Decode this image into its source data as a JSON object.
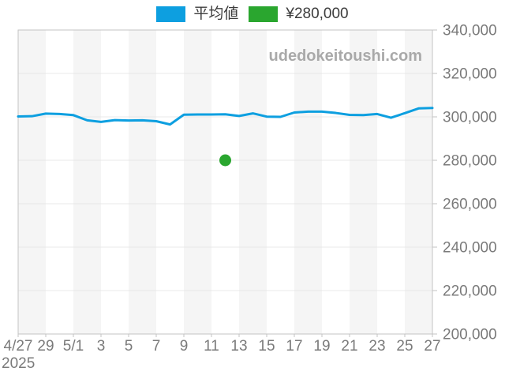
{
  "watermark": "udedokeitoushi.com",
  "legend": {
    "average": {
      "label": "平均値",
      "color": "#0d9fe0"
    },
    "marker": {
      "label": "¥280,000",
      "color": "#2aa62f"
    }
  },
  "colors": {
    "line_blue": "#0d9fe0",
    "marker_green": "#2aa62f",
    "stripe": "#f5f5f5",
    "grid": "#e8e8e8",
    "border": "#c3c3c3",
    "axis_text": "#7a7a7a",
    "watermark_text": "#a9a9a9"
  },
  "chart_data": {
    "type": "line",
    "title": "",
    "xlabel": "",
    "ylabel": "",
    "legend_position": "top-center",
    "grid": true,
    "ylim": [
      200000,
      340000
    ],
    "y_tick_step": 20000,
    "y_tick_labels": [
      "340,000",
      "320,000",
      "300,000",
      "280,000",
      "260,000",
      "240,000",
      "220,000",
      "200,000"
    ],
    "x_tick_labels": [
      "4/27",
      "29",
      "5/1",
      "3",
      "5",
      "7",
      "9",
      "11",
      "13",
      "15",
      "17",
      "19",
      "21",
      "23",
      "25",
      "27"
    ],
    "x_tick_every": 2,
    "year_label": "2025",
    "x": [
      "4/27",
      "4/28",
      "4/29",
      "4/30",
      "5/1",
      "5/2",
      "5/3",
      "5/4",
      "5/5",
      "5/6",
      "5/7",
      "5/8",
      "5/9",
      "5/10",
      "5/11",
      "5/12",
      "5/13",
      "5/14",
      "5/15",
      "5/16",
      "5/17",
      "5/18",
      "5/19",
      "5/20",
      "5/21",
      "5/22",
      "5/23",
      "5/24",
      "5/25",
      "5/26",
      "5/27"
    ],
    "series": [
      {
        "name": "平均値",
        "color": "#0d9fe0",
        "values": [
          300200,
          300300,
          301500,
          301300,
          300800,
          298400,
          297700,
          298500,
          298300,
          298400,
          298000,
          296500,
          301000,
          301100,
          301100,
          301200,
          300400,
          301600,
          300100,
          300000,
          302000,
          302400,
          302400,
          301800,
          300900,
          300800,
          301300,
          299600,
          301700,
          303900,
          304100
        ]
      }
    ],
    "marker": {
      "x": "5/12",
      "value": 280000,
      "color": "#2aa62f",
      "label": "¥280,000"
    }
  }
}
